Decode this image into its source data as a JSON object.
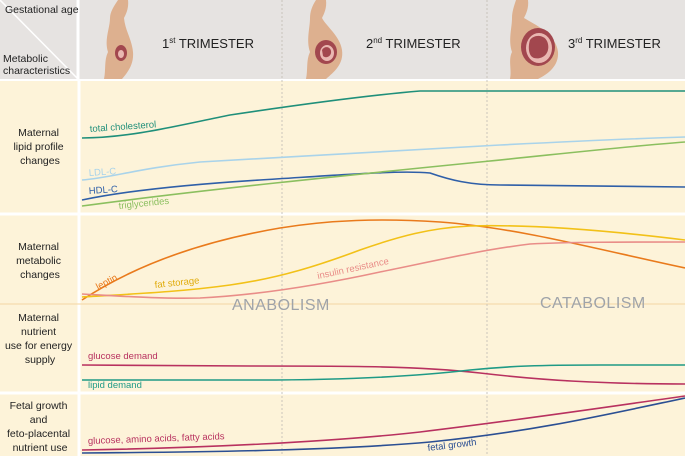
{
  "header": {
    "corner_top": "Gestational age",
    "corner_bottom": [
      "Metabolic",
      "characteristics"
    ],
    "trimesters": [
      {
        "num": "1",
        "sup": "st",
        "label": "TRIMESTER"
      },
      {
        "num": "2",
        "sup": "nd",
        "label": "TRIMESTER"
      },
      {
        "num": "3",
        "sup": "rd",
        "label": "TRIMESTER"
      }
    ]
  },
  "rows": [
    {
      "label_lines": [
        "Maternal",
        "lipid profile",
        "changes"
      ]
    },
    {
      "label_lines": [
        "Maternal",
        "metabolic",
        "changes"
      ]
    },
    {
      "label_lines": [
        "Maternal",
        "nutrient",
        "use for energy",
        "supply"
      ]
    },
    {
      "label_lines": [
        "Fetal growth",
        "and",
        "feto-placental",
        "nutrient use"
      ]
    }
  ],
  "phases": {
    "left": "ANABOLISM",
    "right": "CATABOLISM"
  },
  "curves": [
    {
      "id": "total-cholesterol",
      "label": "total cholesterol",
      "color": "#1f8f7a"
    },
    {
      "id": "ldl-c",
      "label": "LDL-C",
      "color": "#a9d3ea"
    },
    {
      "id": "hdl-c",
      "label": "HDL-C",
      "color": "#2f5fa8"
    },
    {
      "id": "triglycerides",
      "label": "triglycerides",
      "color": "#8bbf5f"
    },
    {
      "id": "leptin",
      "label": "leptin",
      "color": "#e97a1c"
    },
    {
      "id": "fat-storage",
      "label": "fat storage",
      "color": "#f2c118"
    },
    {
      "id": "insulin-resistance",
      "label": "insulin resistance",
      "color": "#e98d88"
    },
    {
      "id": "glucose-demand",
      "label": "glucose demand",
      "color": "#b8315f"
    },
    {
      "id": "lipid-demand",
      "label": "lipid demand",
      "color": "#1f9a86"
    },
    {
      "id": "glucose-amino-fatty",
      "label": "glucose, amino acids, fatty acids",
      "color": "#b8315f"
    },
    {
      "id": "fetal-growth",
      "label": "fetal growth",
      "color": "#2b4f93"
    }
  ],
  "colors": {
    "header_bg": "#e6e3e1",
    "panel_bg": "#fdf3d9",
    "divider": "#f6dcae",
    "phase_text": "#9fa3a9",
    "body_fill": "#ddb08f",
    "uterus": "#a2474e"
  }
}
